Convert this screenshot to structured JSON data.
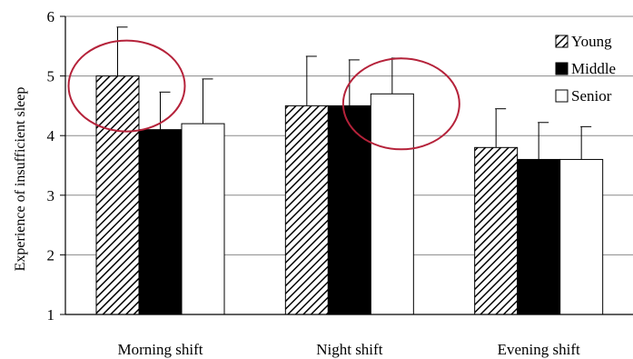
{
  "chart_data": {
    "type": "bar",
    "ylabel": "Experience of insufficient sleep",
    "xlabel": "",
    "ylim": [
      1,
      6
    ],
    "yticks": [
      "1",
      "2",
      "3",
      "4",
      "5",
      "6"
    ],
    "grid": true,
    "legend_position": "top-right",
    "categories": [
      "Morning shift",
      "Night shift",
      "Evening shift"
    ],
    "series": [
      {
        "name": "Young",
        "values": [
          5.0,
          4.5,
          3.8
        ],
        "errors": [
          0.82,
          0.83,
          0.65
        ],
        "fill": "hatched"
      },
      {
        "name": "Middle",
        "values": [
          4.1,
          4.5,
          3.6
        ],
        "errors": [
          0.63,
          0.77,
          0.62
        ],
        "fill": "#000000"
      },
      {
        "name": "Senior",
        "values": [
          4.2,
          4.7,
          3.6
        ],
        "errors": [
          0.75,
          0.6,
          0.55
        ],
        "fill": "#ffffff"
      }
    ],
    "highlights": [
      {
        "category": "Morning shift",
        "series": "Young",
        "color": "#b5223a"
      },
      {
        "category": "Night shift",
        "series": "Senior",
        "color": "#b5223a"
      }
    ]
  }
}
